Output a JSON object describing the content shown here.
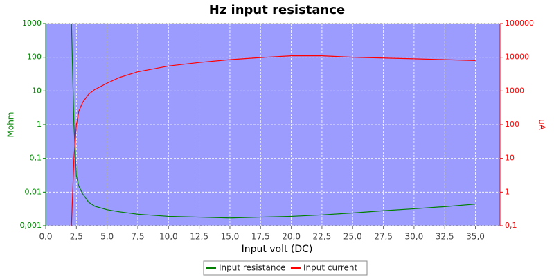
{
  "chart_data": {
    "type": "line",
    "title": "Hz input resistance",
    "xlabel": "Input volt (DC)",
    "ylabel": "Mohm",
    "y2label": "uA",
    "x": [
      2.1,
      2.3,
      2.5,
      2.7,
      3,
      3.5,
      4,
      5,
      6,
      7.5,
      10,
      12.5,
      15,
      17.5,
      20,
      22.5,
      25,
      27.5,
      30,
      32.5,
      35
    ],
    "series": [
      {
        "name": "Input resistance",
        "color": "#008000",
        "values": [
          1000,
          1,
          0.03,
          0.015,
          0.009,
          0.005,
          0.0038,
          0.003,
          0.0026,
          0.0022,
          0.0019,
          0.0018,
          0.0017,
          0.0018,
          0.0019,
          0.0021,
          0.0024,
          0.0028,
          0.0032,
          0.0037,
          0.0044
        ]
      },
      {
        "name": "Input current",
        "color": "#ff0000",
        "axis": "y2",
        "values": [
          0.1,
          10,
          100,
          250,
          450,
          800,
          1100,
          1700,
          2500,
          3700,
          5500,
          7000,
          8500,
          9800,
          11000,
          11000,
          10000,
          9500,
          9000,
          8500,
          8000
        ]
      }
    ],
    "xlim": [
      0,
      37
    ],
    "xticks": [
      {
        "value": 0,
        "label": "0,0"
      },
      {
        "value": 2.5,
        "label": "2,5"
      },
      {
        "value": 5,
        "label": "5,0"
      },
      {
        "value": 7.5,
        "label": "7,5"
      },
      {
        "value": 10,
        "label": "10,0"
      },
      {
        "value": 12.5,
        "label": "12,5"
      },
      {
        "value": 15,
        "label": "15,0"
      },
      {
        "value": 17.5,
        "label": "17,5"
      },
      {
        "value": 20,
        "label": "20,0"
      },
      {
        "value": 22.5,
        "label": "22,5"
      },
      {
        "value": 25,
        "label": "25,0"
      },
      {
        "value": 27.5,
        "label": "27,5"
      },
      {
        "value": 30,
        "label": "30,0"
      },
      {
        "value": 32.5,
        "label": "32,5"
      },
      {
        "value": 35,
        "label": "35,0"
      }
    ],
    "ylim": [
      0.001,
      1000
    ],
    "yticks": [
      {
        "value": 0.001,
        "label": "0,001"
      },
      {
        "value": 0.01,
        "label": "0,01"
      },
      {
        "value": 0.1,
        "label": "0,1"
      },
      1,
      10,
      100,
      1000
    ],
    "y2lim": [
      0.1,
      100000
    ],
    "y2ticks": [
      {
        "value": 0.1,
        "label": "0,1"
      },
      1,
      10,
      100,
      1000,
      10000,
      100000
    ],
    "log_y": true,
    "log_y2": true,
    "grid": true,
    "legend": "bottom"
  }
}
